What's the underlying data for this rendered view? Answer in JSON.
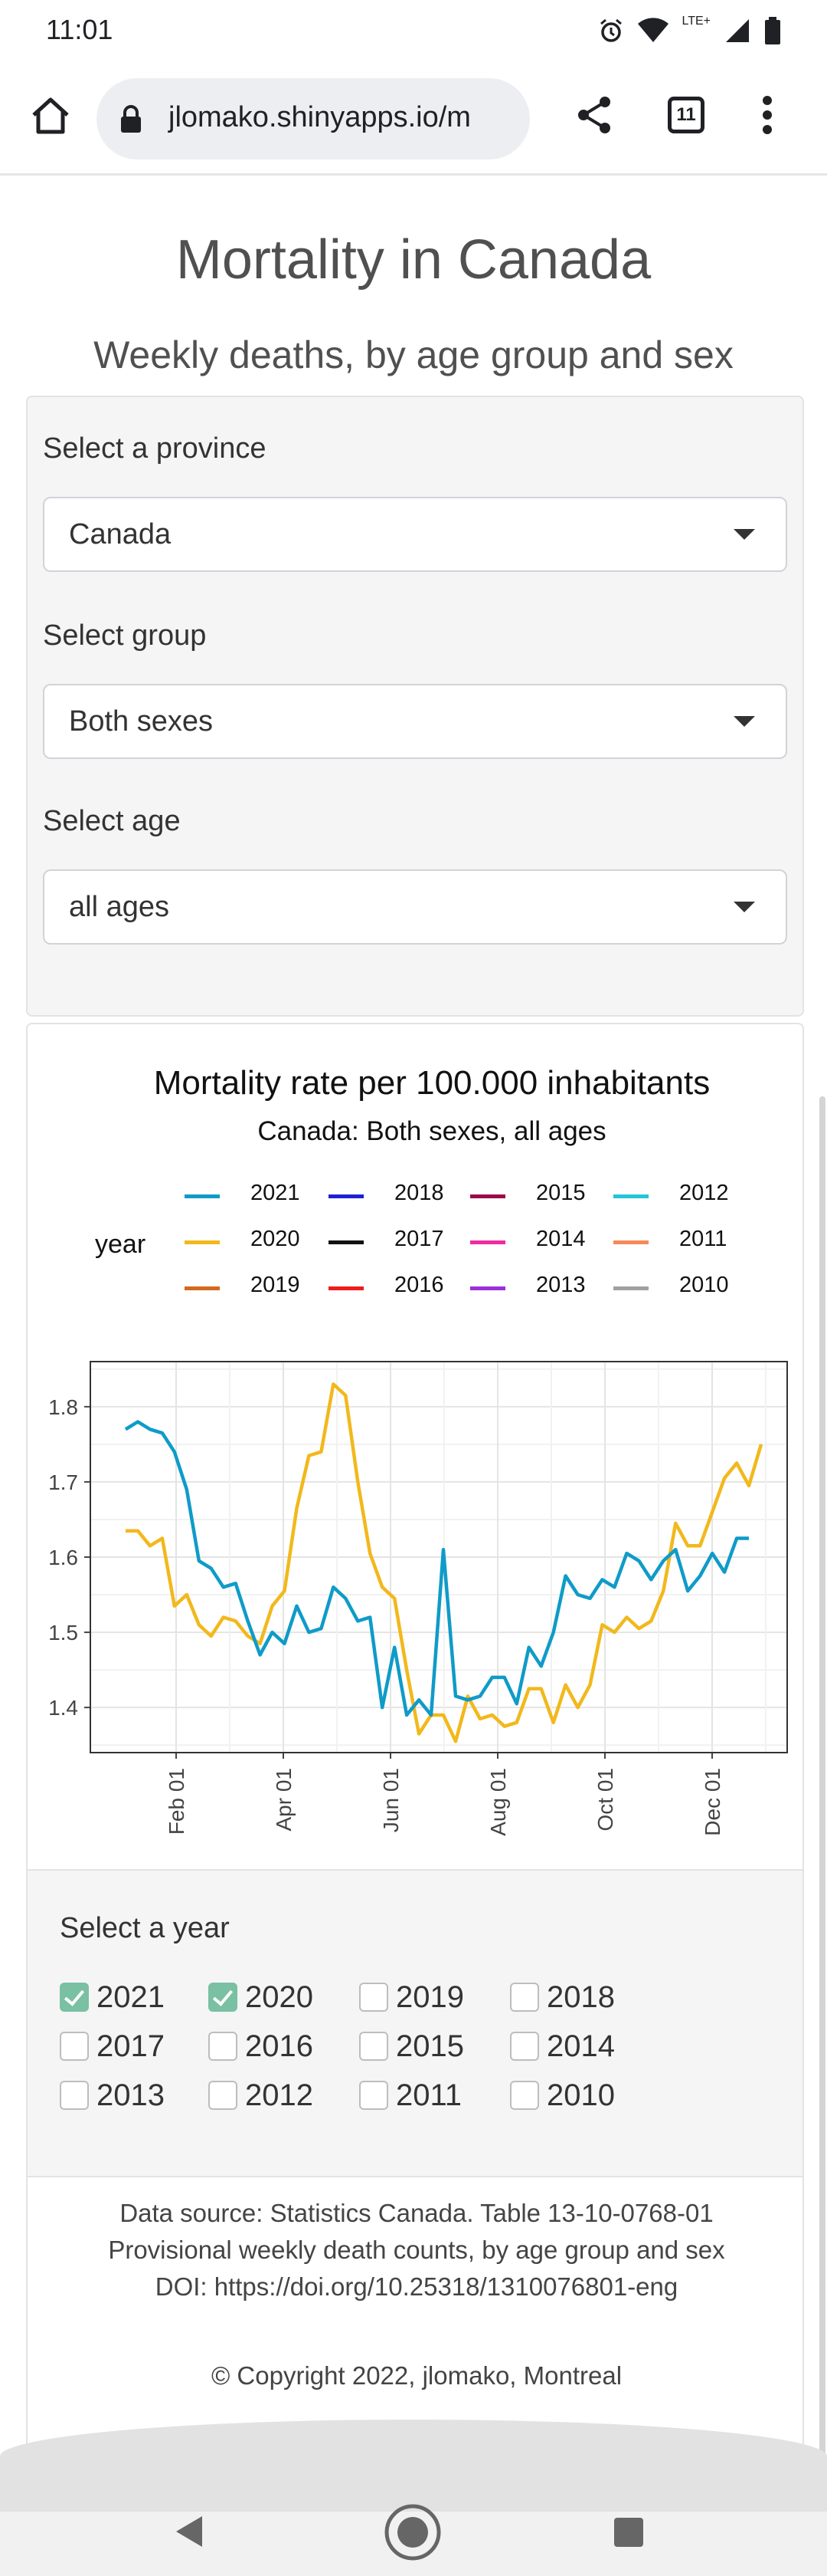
{
  "status": {
    "time": "11:01",
    "net": "LTE+"
  },
  "browser": {
    "url": "jlomako.shinyapps.io/m",
    "tab_count": "11"
  },
  "page": {
    "title": "Mortality in Canada",
    "subtitle": "Weekly deaths, by age group and sex"
  },
  "controls": {
    "province_label": "Select a province",
    "province_value": "Canada",
    "group_label": "Select group",
    "group_value": "Both sexes",
    "age_label": "Select age",
    "age_value": "all ages"
  },
  "chart_data": {
    "type": "line",
    "title": "Mortality rate per 100.000 inhabitants",
    "subtitle": "Canada: Both sexes, all ages",
    "legend_title": "year",
    "legend": [
      {
        "name": "2021",
        "color": "#0f9bc8"
      },
      {
        "name": "2018",
        "color": "#1f1fd6"
      },
      {
        "name": "2015",
        "color": "#9b0a4b"
      },
      {
        "name": "2012",
        "color": "#23c6d6"
      },
      {
        "name": "2020",
        "color": "#f2b81c"
      },
      {
        "name": "2017",
        "color": "#111111"
      },
      {
        "name": "2014",
        "color": "#f22ba0"
      },
      {
        "name": "2011",
        "color": "#f58a5a"
      },
      {
        "name": "2019",
        "color": "#d2691e"
      },
      {
        "name": "2016",
        "color": "#ee1c1c"
      },
      {
        "name": "2013",
        "color": "#9b30d9"
      },
      {
        "name": "2010",
        "color": "#a0a0a0"
      }
    ],
    "x_ticks": [
      "Feb 01",
      "Apr 01",
      "Jun 01",
      "Aug 01",
      "Oct 01",
      "Dec 01"
    ],
    "y_ticks": [
      "1.8",
      "1.7",
      "1.6",
      "1.5",
      "1.4"
    ],
    "ylim": [
      1.34,
      1.86
    ],
    "series": [
      {
        "name": "2021",
        "color": "#0f9bc8",
        "values": [
          1.77,
          1.78,
          1.77,
          1.765,
          1.74,
          1.69,
          1.595,
          1.585,
          1.56,
          1.565,
          1.515,
          1.47,
          1.5,
          1.485,
          1.535,
          1.5,
          1.505,
          1.56,
          1.545,
          1.515,
          1.52,
          1.4,
          1.48,
          1.39,
          1.41,
          1.39,
          1.61,
          1.415,
          1.41,
          1.415,
          1.44,
          1.44,
          1.405,
          1.48,
          1.455,
          1.5,
          1.575,
          1.55,
          1.545,
          1.57,
          1.56,
          1.605,
          1.595,
          1.57,
          1.595,
          1.61,
          1.555,
          1.575,
          1.605,
          1.58,
          1.625,
          1.625
        ]
      },
      {
        "name": "2020",
        "color": "#f2b81c",
        "values": [
          1.635,
          1.635,
          1.615,
          1.625,
          1.535,
          1.55,
          1.51,
          1.495,
          1.52,
          1.515,
          1.495,
          1.485,
          1.535,
          1.555,
          1.665,
          1.735,
          1.74,
          1.83,
          1.815,
          1.7,
          1.605,
          1.56,
          1.545,
          1.45,
          1.365,
          1.39,
          1.39,
          1.355,
          1.415,
          1.385,
          1.39,
          1.375,
          1.38,
          1.425,
          1.425,
          1.38,
          1.43,
          1.4,
          1.43,
          1.51,
          1.5,
          1.52,
          1.505,
          1.515,
          1.555,
          1.645,
          1.615,
          1.615,
          1.66,
          1.705,
          1.725,
          1.695,
          1.75
        ]
      }
    ]
  },
  "year_select": {
    "title": "Select a year",
    "years": [
      {
        "label": "2021",
        "checked": true
      },
      {
        "label": "2020",
        "checked": true
      },
      {
        "label": "2019",
        "checked": false
      },
      {
        "label": "2018",
        "checked": false
      },
      {
        "label": "2017",
        "checked": false
      },
      {
        "label": "2016",
        "checked": false
      },
      {
        "label": "2015",
        "checked": false
      },
      {
        "label": "2014",
        "checked": false
      },
      {
        "label": "2013",
        "checked": false
      },
      {
        "label": "2012",
        "checked": false
      },
      {
        "label": "2011",
        "checked": false
      },
      {
        "label": "2010",
        "checked": false
      }
    ]
  },
  "footer": {
    "line1": "Data source: Statistics Canada. Table 13-10-0768-01",
    "line2": "Provisional weekly death counts, by age group and sex",
    "line3": "DOI: https://doi.org/10.25318/1310076801-eng",
    "copyright": "© Copyright 2022, jlomako, Montreal"
  }
}
